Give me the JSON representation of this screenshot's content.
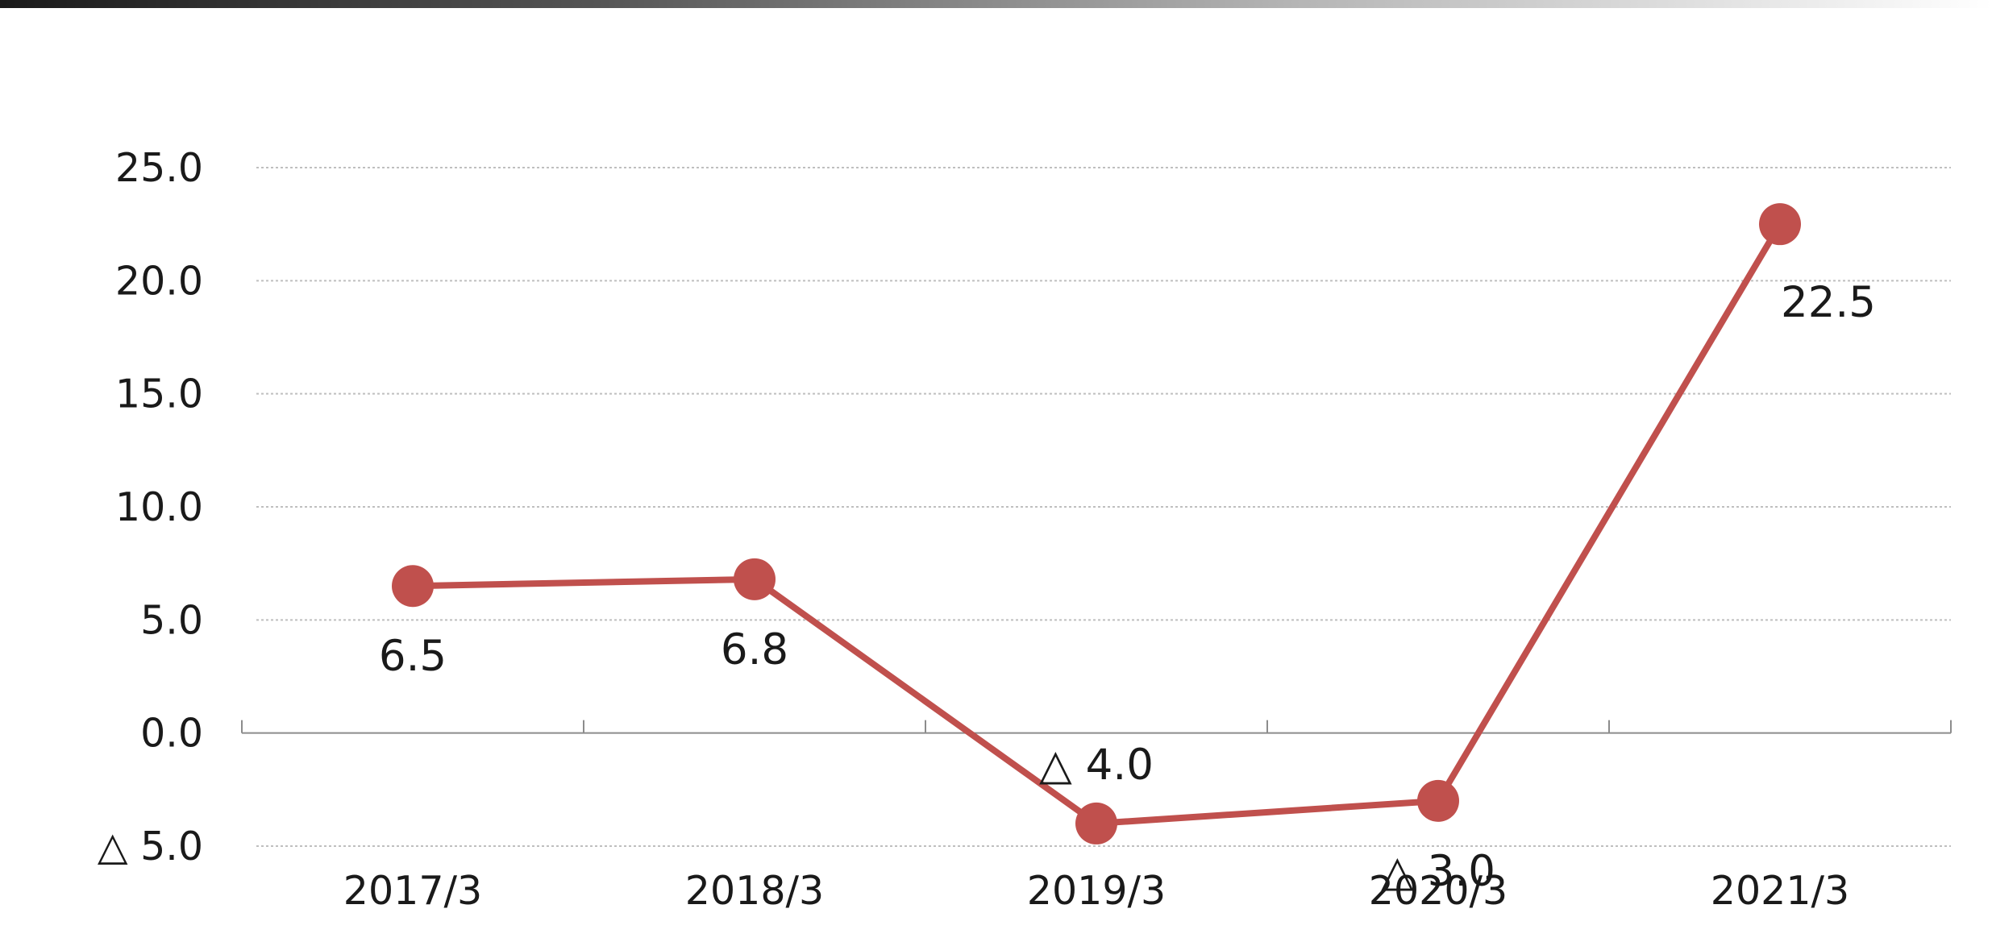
{
  "chart_data": {
    "type": "line",
    "title": "",
    "xlabel": "",
    "ylabel": "",
    "categories": [
      "2017/3",
      "2018/3",
      "2019/3",
      "2020/3",
      "2021/3"
    ],
    "series": [
      {
        "values": [
          6.5,
          6.8,
          -4.0,
          -3.0,
          22.5
        ],
        "labels": [
          "6.5",
          "6.8",
          "△ 4.0",
          "△ 3.0",
          "22.5"
        ],
        "label_side": [
          "below",
          "below",
          "above",
          "below",
          "below-right"
        ],
        "color": "#c0504d"
      }
    ],
    "ylim": [
      -5,
      25
    ],
    "yticks": [
      -5,
      0,
      5,
      10,
      15,
      20,
      25
    ],
    "ytick_labels": [
      "△ 5.0",
      "0.0",
      "5.0",
      "10.0",
      "15.0",
      "20.0",
      "25.0"
    ],
    "grid": true,
    "grid_style": "dotted",
    "legend": "none"
  },
  "colors": {
    "series": "#c0504d",
    "grid": "#bfbfbf",
    "axis": "#8c8c8c",
    "text": "#1a1a1a"
  }
}
